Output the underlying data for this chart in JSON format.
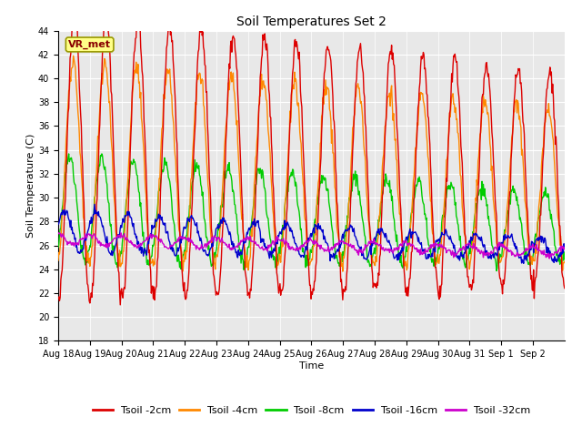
{
  "title": "Soil Temperatures Set 2",
  "xlabel": "Time",
  "ylabel": "Soil Temperature (C)",
  "ylim": [
    18,
    44
  ],
  "yticks": [
    18,
    20,
    22,
    24,
    26,
    28,
    30,
    32,
    34,
    36,
    38,
    40,
    42,
    44
  ],
  "xticklabels": [
    "Aug 18",
    "Aug 19",
    "Aug 20",
    "Aug 21",
    "Aug 22",
    "Aug 23",
    "Aug 24",
    "Aug 25",
    "Aug 26",
    "Aug 27",
    "Aug 28",
    "Aug 29",
    "Aug 30",
    "Aug 31",
    "Sep 1",
    "Sep 2"
  ],
  "colors": {
    "Tsoil -2cm": "#dd0000",
    "Tsoil -4cm": "#ff8800",
    "Tsoil -8cm": "#00cc00",
    "Tsoil -16cm": "#0000cc",
    "Tsoil -32cm": "#cc00cc"
  },
  "plot_bg": "#e8e8e8",
  "fig_bg": "#ffffff",
  "grid_color": "#ffffff",
  "annotation_text": "VR_met",
  "annotation_box_facecolor": "#ffff88",
  "annotation_box_edgecolor": "#999900",
  "annotation_text_color": "#880000",
  "title_fontsize": 10,
  "axis_label_fontsize": 8,
  "tick_fontsize": 7,
  "legend_fontsize": 8,
  "n_days": 16,
  "seed": 12345
}
